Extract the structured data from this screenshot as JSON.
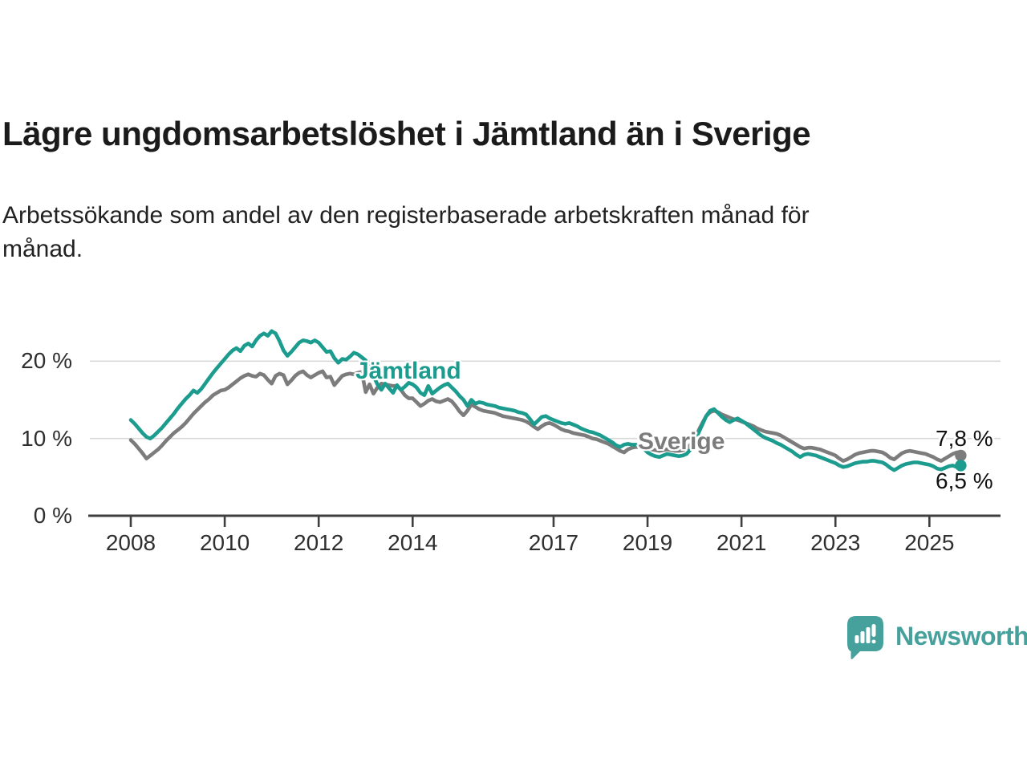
{
  "header": {
    "title": "Lägre ungdomsarbetslöshet i Jämtland än i Sverige",
    "subtitle": "Arbetssökande som andel av den registerbaserade arbetskraften månad för\nmånad."
  },
  "chart_data": {
    "type": "line",
    "title": "Lägre ungdomsarbetslöshet i Jämtland än i Sverige",
    "subtitle": "Arbetssökande som andel av den registerbaserade arbetskraften månad för månad.",
    "x_unit": "month",
    "x_start_year": 2008,
    "x_end": "2025-09",
    "x_axis_ticks": [
      2008,
      2010,
      2012,
      2014,
      2017,
      2019,
      2021,
      2023,
      2025
    ],
    "y_axis_ticks": [
      {
        "value": 0,
        "label": "0 %"
      },
      {
        "value": 10,
        "label": "10 %"
      },
      {
        "value": 20,
        "label": "20 %"
      }
    ],
    "ylim": [
      0,
      26
    ],
    "grid": "horizontal",
    "legend_position": "inline-labels",
    "series": [
      {
        "name": "Sverige",
        "color": "#7c7c7c",
        "end_label": "7,8 %",
        "end_value": 7.8,
        "values": [
          9.8,
          9.3,
          8.7,
          8.1,
          7.4,
          7.8,
          8.2,
          8.6,
          9.1,
          9.7,
          10.2,
          10.7,
          11.1,
          11.5,
          12.0,
          12.6,
          13.2,
          13.7,
          14.2,
          14.7,
          15.1,
          15.6,
          15.9,
          16.2,
          16.3,
          16.6,
          17.0,
          17.4,
          17.8,
          18.1,
          18.3,
          18.1,
          18.0,
          18.4,
          18.2,
          17.6,
          17.1,
          18.1,
          18.4,
          18.2,
          17.0,
          17.5,
          18.1,
          18.5,
          18.7,
          18.2,
          17.9,
          18.2,
          18.5,
          18.7,
          17.9,
          18.0,
          16.9,
          17.5,
          18.1,
          18.3,
          18.4,
          18.3,
          18.5,
          18.6,
          16.0,
          17.0,
          15.8,
          16.6,
          17.1,
          17.0,
          16.9,
          16.8,
          16.8,
          16.3,
          15.6,
          15.2,
          15.2,
          14.7,
          14.2,
          14.5,
          14.9,
          15.1,
          14.8,
          14.7,
          14.9,
          15.1,
          14.8,
          14.2,
          13.5,
          13.0,
          13.6,
          14.4,
          14.1,
          13.8,
          13.6,
          13.5,
          13.4,
          13.3,
          13.1,
          12.9,
          12.8,
          12.7,
          12.6,
          12.5,
          12.4,
          12.2,
          11.9,
          11.5,
          11.2,
          11.6,
          11.9,
          12.0,
          11.8,
          11.5,
          11.2,
          11.0,
          10.9,
          10.7,
          10.6,
          10.5,
          10.4,
          10.2,
          10.0,
          9.9,
          9.7,
          9.5,
          9.3,
          9.0,
          8.7,
          8.4,
          8.2,
          8.6,
          8.8,
          8.9,
          8.9,
          8.8,
          8.7,
          8.6,
          8.5,
          8.4,
          8.5,
          8.6,
          8.5,
          8.4,
          8.4,
          8.5,
          8.7,
          9.2,
          10.0,
          11.0,
          12.0,
          12.9,
          13.4,
          13.6,
          13.4,
          13.1,
          12.9,
          12.7,
          12.5,
          12.4,
          12.2,
          12.0,
          11.8,
          11.6,
          11.3,
          11.1,
          10.9,
          10.8,
          10.7,
          10.6,
          10.4,
          10.1,
          9.8,
          9.5,
          9.2,
          8.9,
          8.7,
          8.8,
          8.8,
          8.7,
          8.6,
          8.4,
          8.2,
          8.0,
          7.8,
          7.4,
          7.1,
          7.3,
          7.6,
          7.9,
          8.1,
          8.2,
          8.3,
          8.4,
          8.4,
          8.3,
          8.2,
          7.9,
          7.5,
          7.3,
          7.7,
          8.1,
          8.3,
          8.4,
          8.3,
          8.2,
          8.1,
          8.0,
          7.8,
          7.6,
          7.3,
          7.1,
          7.4,
          7.7,
          8.0,
          8.2,
          7.8
        ]
      },
      {
        "name": "Jämtland",
        "color": "#1b9c8e",
        "end_label": "6,5 %",
        "end_value": 6.5,
        "values": [
          12.4,
          11.9,
          11.3,
          10.7,
          10.2,
          10.0,
          10.4,
          10.9,
          11.4,
          12.0,
          12.6,
          13.2,
          13.9,
          14.5,
          15.1,
          15.6,
          16.2,
          15.9,
          16.4,
          17.1,
          17.8,
          18.5,
          19.1,
          19.7,
          20.3,
          20.9,
          21.4,
          21.7,
          21.3,
          22.0,
          22.3,
          21.9,
          22.7,
          23.3,
          23.6,
          23.3,
          23.9,
          23.6,
          22.6,
          21.4,
          20.7,
          21.2,
          21.8,
          22.4,
          22.7,
          22.6,
          22.4,
          22.7,
          22.4,
          21.8,
          21.2,
          21.3,
          20.4,
          19.8,
          20.3,
          20.2,
          20.6,
          21.1,
          20.9,
          20.5,
          20.1,
          19.2,
          18.1,
          17.0,
          16.3,
          17.1,
          16.5,
          15.9,
          16.9,
          16.3,
          16.7,
          17.2,
          17.0,
          16.6,
          15.9,
          15.6,
          16.8,
          15.8,
          16.2,
          16.6,
          16.9,
          17.1,
          16.6,
          16.1,
          15.5,
          15.0,
          14.2,
          15.0,
          14.5,
          14.7,
          14.6,
          14.4,
          14.3,
          14.2,
          14.0,
          13.9,
          13.8,
          13.7,
          13.6,
          13.4,
          13.3,
          13.1,
          12.5,
          11.8,
          12.3,
          12.8,
          12.9,
          12.6,
          12.4,
          12.2,
          12.0,
          11.9,
          12.0,
          11.8,
          11.6,
          11.3,
          11.1,
          10.9,
          10.8,
          10.6,
          10.4,
          10.1,
          9.8,
          9.5,
          9.1,
          8.9,
          9.2,
          9.3,
          9.2,
          9.2,
          9.1,
          8.7,
          8.2,
          7.9,
          7.7,
          7.6,
          7.8,
          8.0,
          7.9,
          7.8,
          7.7,
          7.8,
          8.0,
          8.6,
          9.6,
          10.7,
          11.8,
          12.9,
          13.6,
          13.8,
          13.3,
          12.8,
          12.4,
          12.1,
          12.4,
          12.6,
          12.3,
          12.0,
          11.6,
          11.2,
          10.8,
          10.4,
          10.1,
          9.9,
          9.7,
          9.4,
          9.2,
          8.9,
          8.6,
          8.3,
          7.9,
          7.6,
          7.9,
          8.0,
          7.9,
          7.8,
          7.6,
          7.4,
          7.2,
          7.0,
          6.8,
          6.5,
          6.3,
          6.4,
          6.6,
          6.8,
          6.9,
          7.0,
          7.0,
          7.1,
          7.1,
          7.0,
          6.9,
          6.6,
          6.2,
          5.9,
          6.2,
          6.5,
          6.7,
          6.8,
          6.9,
          6.9,
          6.8,
          6.7,
          6.6,
          6.4,
          6.1,
          6.0,
          6.2,
          6.4,
          6.5,
          6.3,
          6.5
        ]
      }
    ]
  },
  "annotations": {
    "series_label_jamtland": "Jämtland",
    "series_label_sverige": "Sverige",
    "end_label_sverige": "7,8 %",
    "end_label_jamtland": "6,5 %"
  },
  "footer": {
    "brand": "Newsworthy"
  },
  "colors": {
    "jamtland_line": "#1b9c8e",
    "sverige_line": "#7c7c7c",
    "gridline": "#d9d9d9",
    "axis": "#3f3f3f",
    "axis_text": "#2f2f2f",
    "title_text": "#1b1b1b",
    "brand_teal": "#46a19c"
  }
}
